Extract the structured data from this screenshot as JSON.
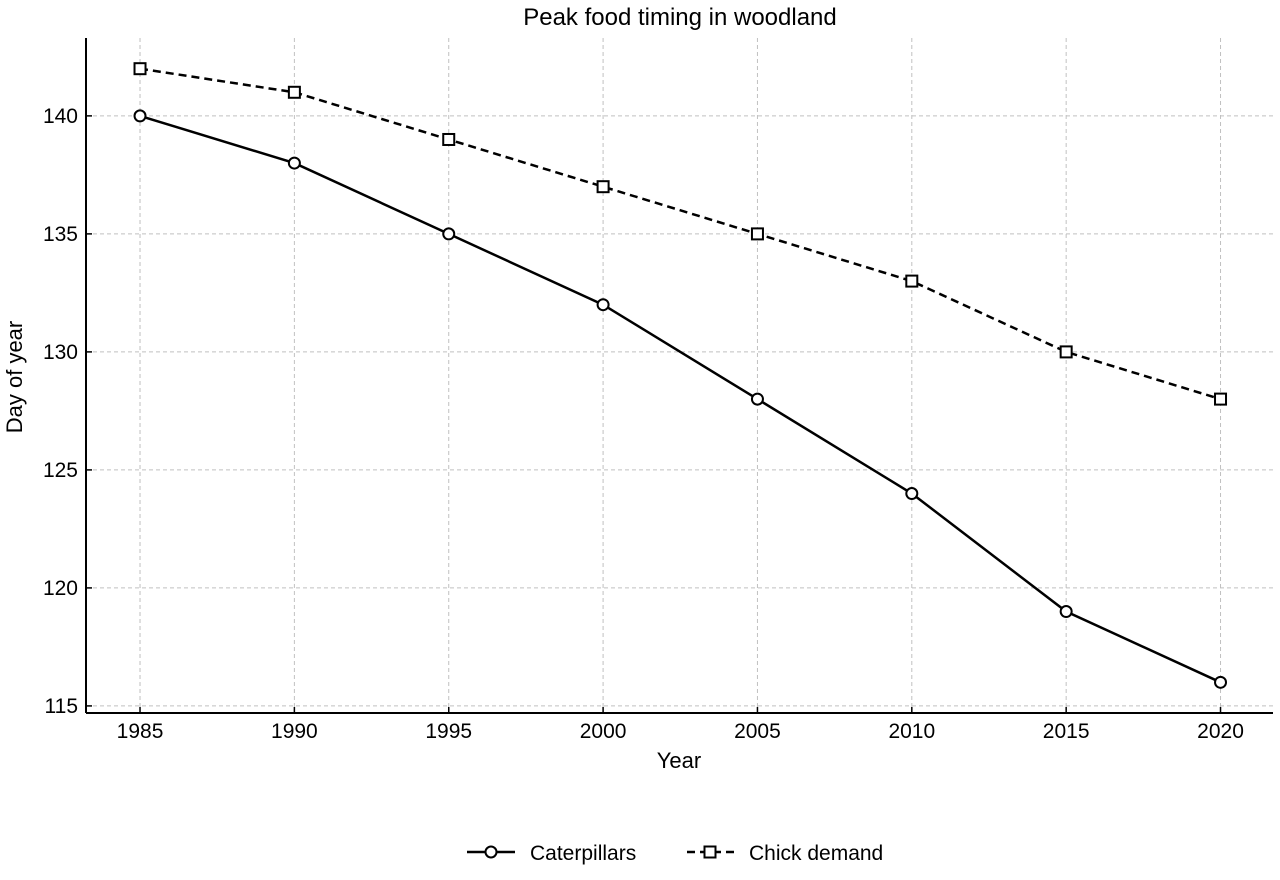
{
  "chart_data": {
    "type": "line",
    "title": "Peak food timing in woodland",
    "xlabel": "Year",
    "ylabel": "Day of year",
    "x": [
      1985,
      1990,
      1995,
      2000,
      2005,
      2010,
      2015,
      2020
    ],
    "x_ticks": [
      "1985",
      "1990",
      "1995",
      "2000",
      "2005",
      "2010",
      "2015",
      "2020"
    ],
    "y_ticks": [
      "115",
      "120",
      "125",
      "130",
      "135",
      "140"
    ],
    "xlim": [
      1983.25,
      2021.7
    ],
    "ylim": [
      114.7,
      143.3
    ],
    "grid": true,
    "legend_position": "bottom-center",
    "series": [
      {
        "name": "Caterpillars",
        "values": [
          140,
          138,
          135,
          132,
          128,
          124,
          119,
          116
        ],
        "line_style": "solid",
        "marker": "circle",
        "color": "#000000"
      },
      {
        "name": "Chick demand",
        "values": [
          142,
          141,
          139,
          137,
          135,
          133,
          130,
          128
        ],
        "line_style": "dashed",
        "marker": "square",
        "color": "#000000"
      }
    ]
  }
}
